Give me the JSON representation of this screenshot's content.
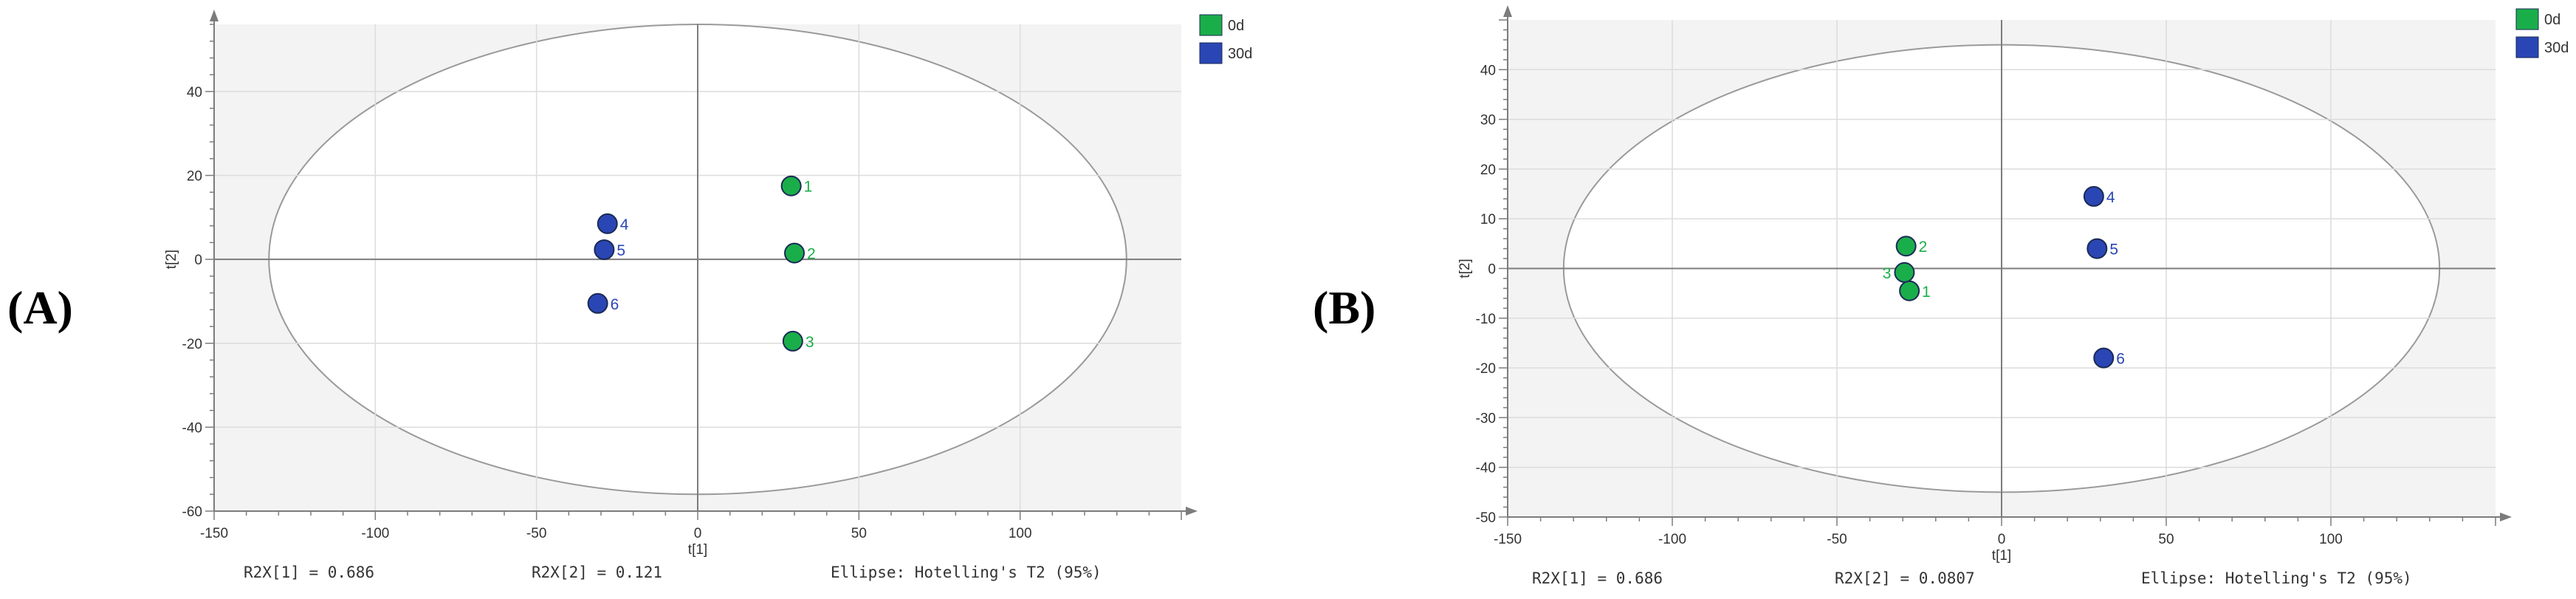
{
  "panels": [
    {
      "panel_label": "(A)",
      "x_label": "t[1]",
      "y_label": "t[2]",
      "x_ticks": [
        "-150",
        "-100",
        "-50",
        "0",
        "50",
        "100"
      ],
      "y_ticks": [
        "40",
        "20",
        "0",
        "-20",
        "-40",
        "-60"
      ],
      "footer": {
        "r2x1": "R2X[1] = 0.686",
        "r2x2": "R2X[2] = 0.121",
        "ellipse": "Ellipse: Hotelling's T2 (95%)"
      },
      "legend": [
        {
          "label": "0d",
          "color": "#1aae4a"
        },
        {
          "label": "30d",
          "color": "#2a46b4"
        }
      ]
    },
    {
      "panel_label": "(B)",
      "x_label": "t[1]",
      "y_label": "t[2]",
      "x_ticks": [
        "-150",
        "-100",
        "-50",
        "0",
        "50",
        "100"
      ],
      "y_ticks": [
        "40",
        "30",
        "20",
        "10",
        "0",
        "-10",
        "-20",
        "-30",
        "-40",
        "-50"
      ],
      "footer": {
        "r2x1": "R2X[1] = 0.686",
        "r2x2": "R2X[2] = 0.0807",
        "ellipse": "Ellipse: Hotelling's T2 (95%)"
      },
      "legend": [
        {
          "label": "0d",
          "color": "#1aae4a"
        },
        {
          "label": "30d",
          "color": "#2a46b4"
        }
      ]
    }
  ],
  "chart_data": [
    {
      "type": "scatter",
      "title": "",
      "xlabel": "t[1]",
      "ylabel": "t[2]",
      "xlim": [
        -150,
        150
      ],
      "ylim": [
        -60,
        56
      ],
      "grid": true,
      "legend_position": "top-right",
      "ellipse": {
        "label": "Ellipse: Hotelling's T2 (95%)",
        "x_semi_axis": 133,
        "y_semi_axis": 56
      },
      "series": [
        {
          "name": "0d",
          "color": "#1aae4a",
          "points": [
            {
              "label": "1",
              "x": 29,
              "y": 17.5
            },
            {
              "label": "2",
              "x": 30,
              "y": 1.5
            },
            {
              "label": "3",
              "x": 29.5,
              "y": -19.5
            }
          ]
        },
        {
          "name": "30d",
          "color": "#2a46b4",
          "points": [
            {
              "label": "4",
              "x": -28,
              "y": 8.5
            },
            {
              "label": "5",
              "x": -29,
              "y": 2.3
            },
            {
              "label": "6",
              "x": -31,
              "y": -10.5
            }
          ]
        }
      ]
    },
    {
      "type": "scatter",
      "title": "",
      "xlabel": "t[1]",
      "ylabel": "t[2]",
      "xlim": [
        -150,
        150
      ],
      "ylim": [
        -50,
        50
      ],
      "grid": true,
      "legend_position": "top-right",
      "ellipse": {
        "label": "Ellipse: Hotelling's T2 (95%)",
        "x_semi_axis": 133,
        "y_semi_axis": 45
      },
      "series": [
        {
          "name": "0d",
          "color": "#1aae4a",
          "points": [
            {
              "label": "1",
              "x": -28,
              "y": -4.5
            },
            {
              "label": "2",
              "x": -29,
              "y": 4.5
            },
            {
              "label": "3",
              "x": -29.5,
              "y": -0.8
            }
          ]
        },
        {
          "name": "30d",
          "color": "#2a46b4",
          "points": [
            {
              "label": "4",
              "x": 28,
              "y": 14.5
            },
            {
              "label": "5",
              "x": 29,
              "y": 4
            },
            {
              "label": "6",
              "x": 31,
              "y": -18
            }
          ]
        }
      ]
    }
  ]
}
